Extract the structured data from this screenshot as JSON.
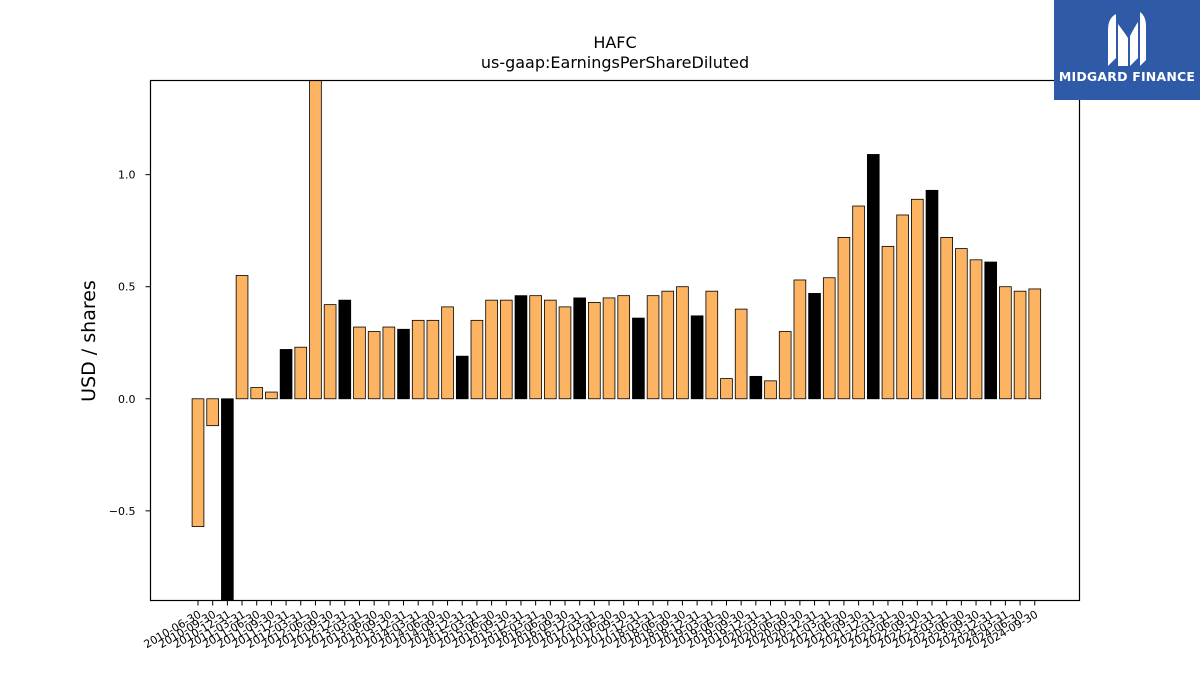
{
  "chart_data": {
    "type": "bar",
    "title": "HAFC",
    "subtitle": "us-gaap:EarningsPerShareDiluted",
    "xlabel": "",
    "ylabel": "USD / shares",
    "ylim": [
      -0.9,
      1.42
    ],
    "yticks": [
      -0.5,
      0.0,
      0.5,
      1.0
    ],
    "ytick_labels": [
      "−0.5",
      "0.0",
      "0.5",
      "1.0"
    ],
    "grid": false,
    "colors": {
      "primary": "#fdb462",
      "highlight": "#000000",
      "edge": "#000000"
    },
    "categories": [
      "2010-06-30",
      "2010-09-30",
      "2010-12-31",
      "2011-03-31",
      "2011-06-30",
      "2011-09-30",
      "2011-12-31",
      "2012-03-31",
      "2012-06-30",
      "2012-09-30",
      "2012-12-31",
      "2013-03-31",
      "2013-06-30",
      "2013-09-30",
      "2013-12-31",
      "2014-03-31",
      "2014-06-30",
      "2014-09-30",
      "2014-12-31",
      "2015-03-31",
      "2015-06-30",
      "2015-09-30",
      "2015-12-31",
      "2016-03-31",
      "2016-06-30",
      "2016-09-30",
      "2016-12-31",
      "2017-03-31",
      "2017-06-30",
      "2017-09-30",
      "2017-12-31",
      "2018-03-31",
      "2018-06-30",
      "2018-09-30",
      "2018-12-31",
      "2019-03-31",
      "2019-06-30",
      "2019-09-30",
      "2019-12-31",
      "2020-03-31",
      "2020-06-30",
      "2020-09-30",
      "2020-12-31",
      "2021-03-31",
      "2021-06-30",
      "2021-09-30",
      "2021-12-31",
      "2022-03-31",
      "2022-06-30",
      "2022-09-30",
      "2022-12-31",
      "2023-03-31",
      "2023-06-30",
      "2023-09-30",
      "2023-12-31",
      "2024-03-31",
      "2024-06-30",
      "2024-09-30"
    ],
    "values": [
      -0.57,
      -0.12,
      -0.9,
      0.55,
      0.05,
      0.03,
      0.22,
      0.23,
      1.42,
      0.42,
      0.44,
      0.32,
      0.3,
      0.32,
      0.31,
      0.35,
      0.35,
      0.41,
      0.19,
      0.35,
      0.44,
      0.44,
      0.46,
      0.46,
      0.44,
      0.41,
      0.45,
      0.43,
      0.45,
      0.46,
      0.36,
      0.46,
      0.48,
      0.5,
      0.37,
      0.48,
      0.09,
      0.4,
      0.1,
      0.08,
      0.3,
      0.53,
      0.47,
      0.54,
      0.72,
      0.86,
      1.09,
      0.68,
      0.82,
      0.89,
      0.93,
      0.72,
      0.67,
      0.62,
      0.61,
      0.5,
      0.48,
      0.49
    ],
    "highlighted": [
      2,
      6,
      10,
      14,
      18,
      22,
      26,
      30,
      34,
      38,
      42,
      46,
      50,
      54
    ]
  },
  "logo": {
    "text": "MIDGARD FINANCE",
    "icon": "midgard-logo-icon"
  }
}
